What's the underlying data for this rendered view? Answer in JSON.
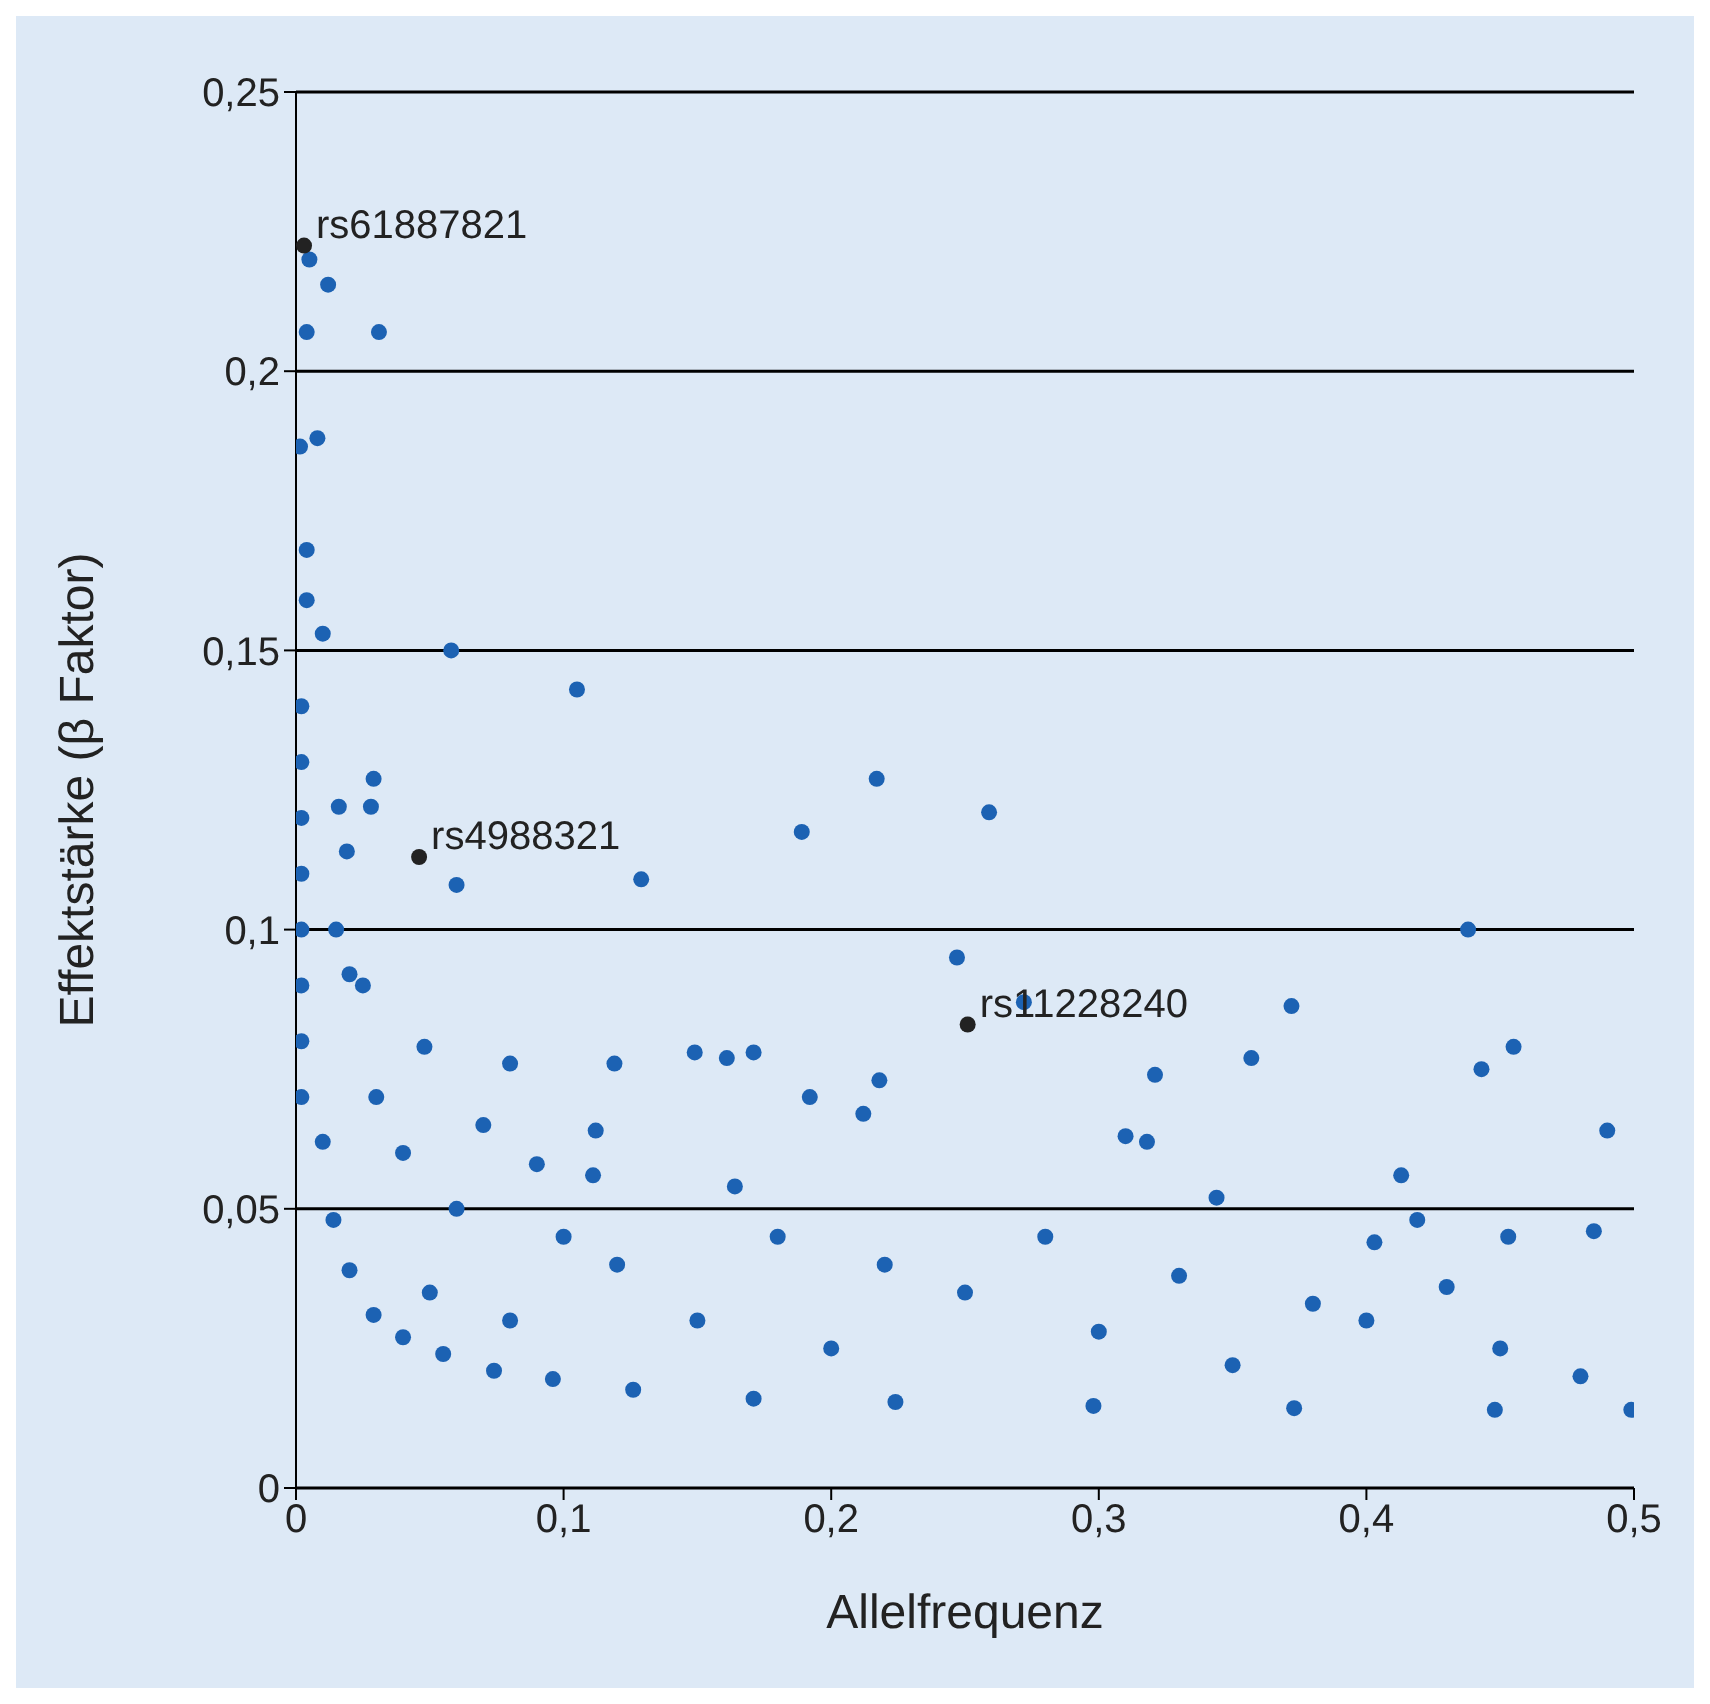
{
  "chart_data": {
    "type": "scatter",
    "xlabel": "Allelfrequenz",
    "ylabel": "Effektstärke (β Faktor)",
    "xlim": [
      0,
      0.5
    ],
    "ylim": [
      0,
      0.25
    ],
    "xticks": [
      0,
      {
        "value": 0.1,
        "label": "0,1"
      },
      {
        "value": 0.2,
        "label": "0,2"
      },
      {
        "value": 0.3,
        "label": "0,3"
      },
      {
        "value": 0.4,
        "label": "0,4"
      },
      {
        "value": 0.5,
        "label": "0,5"
      }
    ],
    "yticks": [
      0,
      {
        "value": 0.05,
        "label": "0,05"
      },
      {
        "value": 0.1,
        "label": "0,1"
      },
      {
        "value": 0.15,
        "label": "0,15"
      },
      {
        "value": 0.2,
        "label": "0,2"
      },
      {
        "value": 0.25,
        "label": "0,25"
      }
    ],
    "grid": "y",
    "marker": "circle",
    "legend": false,
    "series": [
      {
        "color": "#1c62b3",
        "x": [
          0.005,
          0.012,
          0.004,
          0.031,
          0.008,
          0.0015,
          0.004,
          0.004,
          0.01,
          0.058,
          0.105,
          0.029,
          0.217,
          0.259,
          0.016,
          0.028,
          0.189,
          0.129,
          0.06,
          0.019,
          0.438,
          0.247,
          0.372,
          0.272,
          0.455,
          0.443,
          0.321,
          0.357,
          0.048,
          0.149,
          0.161,
          0.171,
          0.08,
          0.119,
          0.49,
          0.218,
          0.212,
          0.192,
          0.31,
          0.318,
          0.413,
          0.112,
          0.111,
          0.164,
          0.344,
          0.419,
          0.403,
          0.453,
          0.485,
          0.01,
          0.014,
          0.02,
          0.029,
          0.04,
          0.055,
          0.074,
          0.096,
          0.126,
          0.171,
          0.224,
          0.298,
          0.373,
          0.448,
          0.499,
          0.002,
          0.002,
          0.002,
          0.002,
          0.002,
          0.002,
          0.002,
          0.002,
          0.15,
          0.2,
          0.25,
          0.3,
          0.35,
          0.4,
          0.45,
          0.48,
          0.12,
          0.18,
          0.22,
          0.28,
          0.33,
          0.38,
          0.43,
          0.05,
          0.08,
          0.1,
          0.06,
          0.04,
          0.03,
          0.025,
          0.02,
          0.015,
          0.07,
          0.09
        ],
        "values": [
          0.22,
          0.2155,
          0.207,
          0.207,
          0.188,
          0.1865,
          0.168,
          0.159,
          0.153,
          0.15,
          0.143,
          0.127,
          0.127,
          0.121,
          0.122,
          0.122,
          0.1175,
          0.109,
          0.108,
          0.114,
          0.1,
          0.095,
          0.0863,
          0.087,
          0.079,
          0.075,
          0.074,
          0.077,
          0.079,
          0.078,
          0.077,
          0.078,
          0.076,
          0.076,
          0.064,
          0.073,
          0.067,
          0.07,
          0.063,
          0.062,
          0.056,
          0.064,
          0.056,
          0.054,
          0.052,
          0.048,
          0.044,
          0.045,
          0.046,
          0.062,
          0.048,
          0.039,
          0.031,
          0.027,
          0.024,
          0.021,
          0.0195,
          0.0176,
          0.016,
          0.0154,
          0.0147,
          0.0143,
          0.014,
          0.014,
          0.14,
          0.13,
          0.12,
          0.11,
          0.1,
          0.09,
          0.08,
          0.07,
          0.03,
          0.025,
          0.035,
          0.028,
          0.022,
          0.03,
          0.025,
          0.02,
          0.04,
          0.045,
          0.04,
          0.045,
          0.038,
          0.033,
          0.036,
          0.035,
          0.03,
          0.045,
          0.05,
          0.06,
          0.07,
          0.09,
          0.092,
          0.1,
          0.065,
          0.058
        ]
      },
      {
        "color": "#222222",
        "x": [
          0.003,
          0.046,
          0.251
        ],
        "values": [
          0.2225,
          0.113,
          0.083
        ]
      }
    ],
    "annotations": [
      {
        "text": "rs61887821",
        "x": 0.003,
        "y": 0.2225
      },
      {
        "text": "rs4988321",
        "x": 0.046,
        "y": 0.113
      },
      {
        "text": "rs11228240",
        "x": 0.251,
        "y": 0.083
      }
    ]
  }
}
